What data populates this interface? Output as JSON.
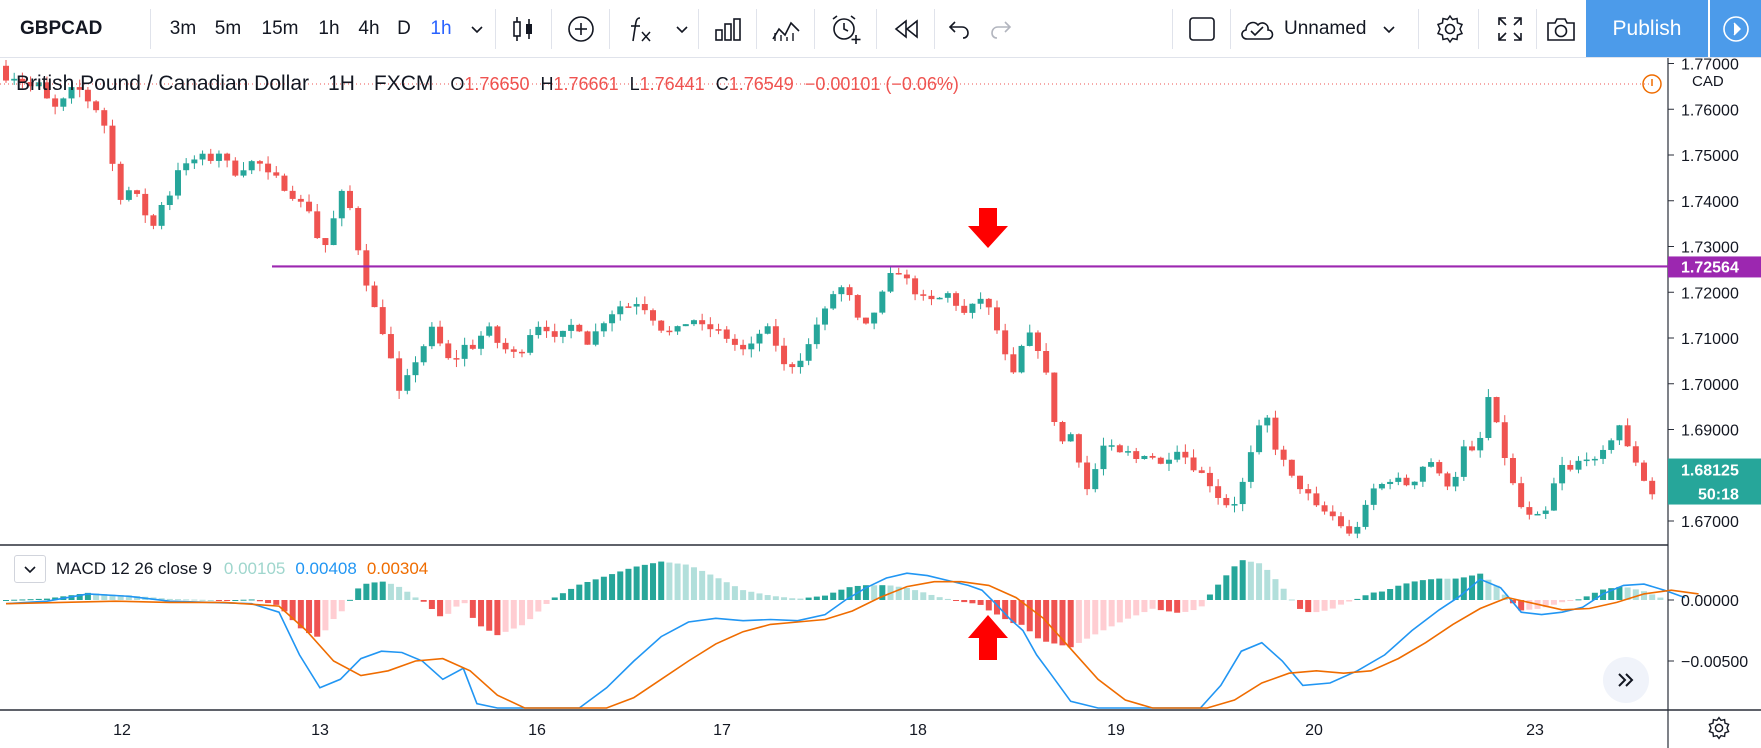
{
  "toolbar": {
    "symbol": "GBPCAD",
    "intervals": [
      "3m",
      "5m",
      "15m",
      "1h",
      "4h",
      "D",
      "1h"
    ],
    "active_interval_index": 6,
    "layout_name": "Unnamed",
    "publish_label": "Publish"
  },
  "legend": {
    "title": "British Pound / Canadian Dollar",
    "interval": "1H",
    "source": "FXCM",
    "open_label": "O",
    "open": "1.76650",
    "high_label": "H",
    "high": "1.76661",
    "low_label": "L",
    "low": "1.76441",
    "close_label": "C",
    "close": "1.76549",
    "change": "−0.00101 (−0.06%)"
  },
  "price_axis": {
    "currency": "CAD",
    "ticks": [
      "1.77000",
      "1.76000",
      "1.75000",
      "1.74000",
      "1.73000",
      "1.72000",
      "1.71000",
      "1.70000",
      "1.69000",
      "1.68000",
      "1.67000"
    ],
    "hline_label": "1.72564",
    "last_price_label": "1.68125",
    "countdown_label": "50:18"
  },
  "macd": {
    "label": "MACD 12 26 close 9",
    "histogram_value": "0.00105",
    "macd_value": "0.00408",
    "signal_value": "0.00304",
    "ticks": [
      "0.00000",
      "−0.00500"
    ]
  },
  "time_axis": {
    "labels": [
      "12",
      "13",
      "16",
      "17",
      "18",
      "19",
      "20",
      "23"
    ]
  },
  "colors": {
    "up": "#26a69a",
    "down": "#ef5350",
    "hline": "#9c27b0",
    "macd_line": "#2196f3",
    "signal_line": "#ef6c00",
    "arrows": "#ff0000",
    "accent": "#2962ff",
    "publish": "#4c9bea"
  },
  "icons": [
    "candles-icon",
    "add-indicator-icon",
    "fx-icon",
    "templates-icon",
    "compare-icon",
    "alert-icon",
    "replay-icon",
    "undo-icon",
    "redo-icon",
    "layout-icon",
    "cloud-icon",
    "settings-icon",
    "fullscreen-icon",
    "camera-icon",
    "chevron-right-icon",
    "double-chevron-icon",
    "gear-icon"
  ],
  "chart_data": {
    "type": "candlestick",
    "symbol": "GBPCAD",
    "interval": "1H",
    "x_labels": [
      "12",
      "13",
      "16",
      "17",
      "18",
      "19",
      "20",
      "23"
    ],
    "ylim": [
      1.667,
      1.7725
    ],
    "horizontal_line": 1.72564,
    "last_price": 1.68125,
    "path": [
      [
        0,
        1.7695
      ],
      [
        8,
        1.766
      ],
      [
        14,
        1.7675
      ],
      [
        22,
        1.7648
      ],
      [
        30,
        1.7655
      ],
      [
        38,
        1.761
      ],
      [
        44,
        1.76
      ],
      [
        52,
        1.764
      ],
      [
        58,
        1.765
      ],
      [
        64,
        1.7625
      ],
      [
        72,
        1.76
      ],
      [
        78,
        1.7565
      ],
      [
        83,
        1.752
      ],
      [
        85,
        1.744
      ],
      [
        88,
        1.74
      ],
      [
        95,
        1.7425
      ],
      [
        102,
        1.741
      ],
      [
        108,
        1.737
      ],
      [
        112,
        1.731
      ],
      [
        116,
        1.738
      ],
      [
        122,
        1.74
      ],
      [
        128,
        1.742
      ],
      [
        132,
        1.747
      ],
      [
        140,
        1.748
      ],
      [
        148,
        1.75
      ],
      [
        156,
        1.749
      ],
      [
        164,
        1.751
      ],
      [
        170,
        1.747
      ],
      [
        176,
        1.7455
      ],
      [
        182,
        1.748
      ],
      [
        190,
        1.749
      ],
      [
        196,
        1.746
      ],
      [
        204,
        1.745
      ],
      [
        212,
        1.742
      ],
      [
        220,
        1.74
      ],
      [
        228,
        1.738
      ],
      [
        234,
        1.732
      ],
      [
        238,
        1.729
      ],
      [
        244,
        1.733
      ],
      [
        250,
        1.742
      ],
      [
        256,
        1.741
      ],
      [
        262,
        1.733
      ],
      [
        266,
        1.726
      ],
      [
        272,
        1.72
      ],
      [
        280,
        1.713
      ],
      [
        286,
        1.708
      ],
      [
        292,
        1.7
      ],
      [
        296,
        1.696
      ],
      [
        302,
        1.704
      ],
      [
        310,
        1.706
      ],
      [
        316,
        1.713
      ],
      [
        322,
        1.71
      ],
      [
        328,
        1.706
      ],
      [
        334,
        1.704
      ],
      [
        340,
        1.709
      ],
      [
        346,
        1.707
      ],
      [
        352,
        1.71
      ],
      [
        360,
        1.712
      ],
      [
        368,
        1.708
      ],
      [
        376,
        1.707
      ],
      [
        382,
        1.706
      ],
      [
        388,
        1.71
      ],
      [
        394,
        1.713
      ],
      [
        402,
        1.712
      ],
      [
        410,
        1.709
      ],
      [
        418,
        1.713
      ],
      [
        426,
        1.712
      ],
      [
        434,
        1.708
      ],
      [
        440,
        1.713
      ],
      [
        446,
        1.714
      ],
      [
        454,
        1.717
      ],
      [
        462,
        1.717
      ],
      [
        470,
        1.718
      ],
      [
        478,
        1.715
      ],
      [
        486,
        1.712
      ],
      [
        494,
        1.711
      ],
      [
        502,
        1.713
      ],
      [
        510,
        1.714
      ],
      [
        518,
        1.712
      ],
      [
        526,
        1.712
      ],
      [
        534,
        1.71
      ],
      [
        542,
        1.708
      ],
      [
        548,
        1.707
      ],
      [
        554,
        1.709
      ],
      [
        562,
        1.713
      ],
      [
        568,
        1.71
      ],
      [
        576,
        1.704
      ],
      [
        584,
        1.704
      ],
      [
        592,
        1.707
      ],
      [
        600,
        1.713
      ],
      [
        608,
        1.717
      ],
      [
        614,
        1.721
      ],
      [
        620,
        1.721
      ],
      [
        626,
        1.718
      ],
      [
        632,
        1.712
      ],
      [
        638,
        1.713
      ],
      [
        644,
        1.717
      ],
      [
        650,
        1.721
      ],
      [
        656,
        1.725
      ],
      [
        662,
        1.724
      ],
      [
        668,
        1.722
      ],
      [
        674,
        1.719
      ],
      [
        680,
        1.7185
      ],
      [
        686,
        1.718
      ],
      [
        692,
        1.719
      ],
      [
        698,
        1.72
      ],
      [
        704,
        1.716
      ],
      [
        710,
        1.715
      ],
      [
        716,
        1.718
      ],
      [
        722,
        1.719
      ],
      [
        728,
        1.715
      ],
      [
        734,
        1.71
      ],
      [
        738,
        1.706
      ],
      [
        744,
        1.702
      ],
      [
        748,
        1.706
      ],
      [
        752,
        1.71
      ],
      [
        758,
        1.711
      ],
      [
        764,
        1.706
      ],
      [
        770,
        1.7
      ],
      [
        774,
        1.692
      ],
      [
        778,
        1.686
      ],
      [
        784,
        1.69
      ],
      [
        790,
        1.687
      ],
      [
        796,
        1.676
      ],
      [
        802,
        1.679
      ],
      [
        808,
        1.686
      ],
      [
        814,
        1.687
      ],
      [
        820,
        1.684
      ],
      [
        826,
        1.686
      ],
      [
        832,
        1.683
      ],
      [
        838,
        1.6845
      ],
      [
        844,
        1.685
      ],
      [
        850,
        1.682
      ],
      [
        856,
        1.683
      ],
      [
        862,
        1.686
      ],
      [
        868,
        1.685
      ],
      [
        874,
        1.682
      ],
      [
        880,
        1.681
      ],
      [
        886,
        1.679
      ],
      [
        892,
        1.676
      ],
      [
        898,
        1.674
      ],
      [
        904,
        1.673
      ],
      [
        910,
        1.676
      ],
      [
        916,
        1.683
      ],
      [
        922,
        1.688
      ],
      [
        928,
        1.695
      ],
      [
        934,
        1.687
      ],
      [
        940,
        1.684
      ],
      [
        946,
        1.681
      ],
      [
        950,
        1.678
      ],
      [
        956,
        1.677
      ],
      [
        962,
        1.675
      ],
      [
        966,
        1.673
      ],
      [
        972,
        1.672
      ],
      [
        978,
        1.671
      ],
      [
        984,
        1.669
      ],
      [
        990,
        1.667
      ],
      [
        996,
        1.669
      ],
      [
        1002,
        1.673
      ],
      [
        1008,
        1.677
      ],
      [
        1014,
        1.678
      ],
      [
        1020,
        1.679
      ],
      [
        1026,
        1.679
      ],
      [
        1032,
        1.678
      ],
      [
        1038,
        1.679
      ],
      [
        1044,
        1.682
      ],
      [
        1050,
        1.683
      ],
      [
        1056,
        1.68
      ],
      [
        1062,
        1.678
      ],
      [
        1068,
        1.68
      ],
      [
        1074,
        1.686
      ],
      [
        1080,
        1.685
      ],
      [
        1086,
        1.688
      ],
      [
        1092,
        1.697
      ],
      [
        1098,
        1.691
      ],
      [
        1104,
        1.684
      ],
      [
        1110,
        1.678
      ],
      [
        1116,
        1.673
      ],
      [
        1122,
        1.671
      ],
      [
        1128,
        1.671
      ],
      [
        1134,
        1.672
      ],
      [
        1140,
        1.678
      ],
      [
        1146,
        1.682
      ],
      [
        1152,
        1.681
      ],
      [
        1158,
        1.683
      ],
      [
        1164,
        1.684
      ],
      [
        1170,
        1.683
      ],
      [
        1176,
        1.685
      ],
      [
        1182,
        1.688
      ],
      [
        1188,
        1.691
      ],
      [
        1194,
        1.686
      ],
      [
        1200,
        1.683
      ],
      [
        1206,
        1.679
      ],
      [
        1212,
        1.676
      ],
      [
        1218,
        1.6735
      ],
      [
        1224,
        1.67
      ]
    ],
    "macd_line": [
      [
        0,
        -0.0003
      ],
      [
        30,
        -0.0001
      ],
      [
        60,
        0.0005
      ],
      [
        90,
        0.0003
      ],
      [
        120,
        -0.0001
      ],
      [
        150,
        -0.0002
      ],
      [
        180,
        -0.0003
      ],
      [
        200,
        -0.001
      ],
      [
        215,
        -0.0045
      ],
      [
        230,
        -0.0072
      ],
      [
        245,
        -0.0065
      ],
      [
        260,
        -0.0048
      ],
      [
        275,
        -0.0042
      ],
      [
        290,
        -0.0043
      ],
      [
        305,
        -0.005
      ],
      [
        320,
        -0.0065
      ],
      [
        335,
        -0.0056
      ],
      [
        345,
        -0.0085
      ],
      [
        360,
        -0.011
      ],
      [
        380,
        -0.012
      ],
      [
        400,
        -0.0107
      ],
      [
        420,
        -0.009
      ],
      [
        440,
        -0.0072
      ],
      [
        460,
        -0.005
      ],
      [
        480,
        -0.003
      ],
      [
        500,
        -0.0018
      ],
      [
        520,
        -0.0015
      ],
      [
        540,
        -0.0017
      ],
      [
        560,
        -0.0016
      ],
      [
        580,
        -0.0017
      ],
      [
        600,
        -0.0012
      ],
      [
        615,
        0.0
      ],
      [
        630,
        0.001
      ],
      [
        645,
        0.0018
      ],
      [
        660,
        0.0022
      ],
      [
        675,
        0.002
      ],
      [
        690,
        0.0016
      ],
      [
        705,
        0.0012
      ],
      [
        715,
        0.0008
      ],
      [
        725,
        -0.0003
      ],
      [
        735,
        -0.0015
      ],
      [
        745,
        -0.0025
      ],
      [
        755,
        -0.0045
      ],
      [
        765,
        -0.006
      ],
      [
        780,
        -0.0083
      ],
      [
        800,
        -0.0095
      ],
      [
        820,
        -0.01
      ],
      [
        840,
        -0.0098
      ],
      [
        860,
        -0.0105
      ],
      [
        875,
        -0.01
      ],
      [
        890,
        -0.007
      ],
      [
        905,
        -0.0042
      ],
      [
        920,
        -0.0035
      ],
      [
        935,
        -0.005
      ],
      [
        950,
        -0.007
      ],
      [
        970,
        -0.0068
      ],
      [
        990,
        -0.0058
      ],
      [
        1010,
        -0.0045
      ],
      [
        1030,
        -0.0025
      ],
      [
        1050,
        -0.0008
      ],
      [
        1065,
        0.0003
      ],
      [
        1080,
        0.0017
      ],
      [
        1095,
        0.001
      ],
      [
        1110,
        -0.001
      ],
      [
        1125,
        -0.0012
      ],
      [
        1140,
        -0.001
      ],
      [
        1155,
        -0.0006
      ],
      [
        1170,
        0.0005
      ],
      [
        1185,
        0.0012
      ],
      [
        1200,
        0.0013
      ],
      [
        1215,
        0.0008
      ],
      [
        1230,
        0.0002
      ]
    ],
    "signal_line": [
      [
        0,
        -0.0003
      ],
      [
        40,
        -0.0002
      ],
      [
        80,
        -0.0001
      ],
      [
        120,
        -0.0002
      ],
      [
        160,
        -0.0002
      ],
      [
        200,
        -0.0005
      ],
      [
        220,
        -0.0025
      ],
      [
        240,
        -0.005
      ],
      [
        260,
        -0.0062
      ],
      [
        280,
        -0.0058
      ],
      [
        300,
        -0.005
      ],
      [
        320,
        -0.0048
      ],
      [
        340,
        -0.0058
      ],
      [
        360,
        -0.0078
      ],
      [
        380,
        -0.0098
      ],
      [
        400,
        -0.0108
      ],
      [
        420,
        -0.0104
      ],
      [
        440,
        -0.0094
      ],
      [
        460,
        -0.008
      ],
      [
        480,
        -0.0065
      ],
      [
        500,
        -0.005
      ],
      [
        520,
        -0.0036
      ],
      [
        540,
        -0.0026
      ],
      [
        560,
        -0.002
      ],
      [
        580,
        -0.0018
      ],
      [
        600,
        -0.0016
      ],
      [
        620,
        -0.0009
      ],
      [
        640,
        0.0002
      ],
      [
        660,
        0.0011
      ],
      [
        680,
        0.0015
      ],
      [
        700,
        0.0015
      ],
      [
        720,
        0.0012
      ],
      [
        740,
        0.0002
      ],
      [
        760,
        -0.0015
      ],
      [
        780,
        -0.004
      ],
      [
        800,
        -0.0065
      ],
      [
        820,
        -0.0082
      ],
      [
        840,
        -0.009
      ],
      [
        860,
        -0.0093
      ],
      [
        880,
        -0.0092
      ],
      [
        900,
        -0.0082
      ],
      [
        920,
        -0.0068
      ],
      [
        940,
        -0.006
      ],
      [
        960,
        -0.0058
      ],
      [
        980,
        -0.006
      ],
      [
        1000,
        -0.0058
      ],
      [
        1020,
        -0.0048
      ],
      [
        1040,
        -0.0035
      ],
      [
        1060,
        -0.002
      ],
      [
        1080,
        -0.0007
      ],
      [
        1100,
        0.0002
      ],
      [
        1120,
        -0.0003
      ],
      [
        1140,
        -0.0008
      ],
      [
        1160,
        -0.0007
      ],
      [
        1180,
        -0.0002
      ],
      [
        1200,
        0.0005
      ],
      [
        1220,
        0.0008
      ],
      [
        1240,
        0.0005
      ]
    ]
  }
}
